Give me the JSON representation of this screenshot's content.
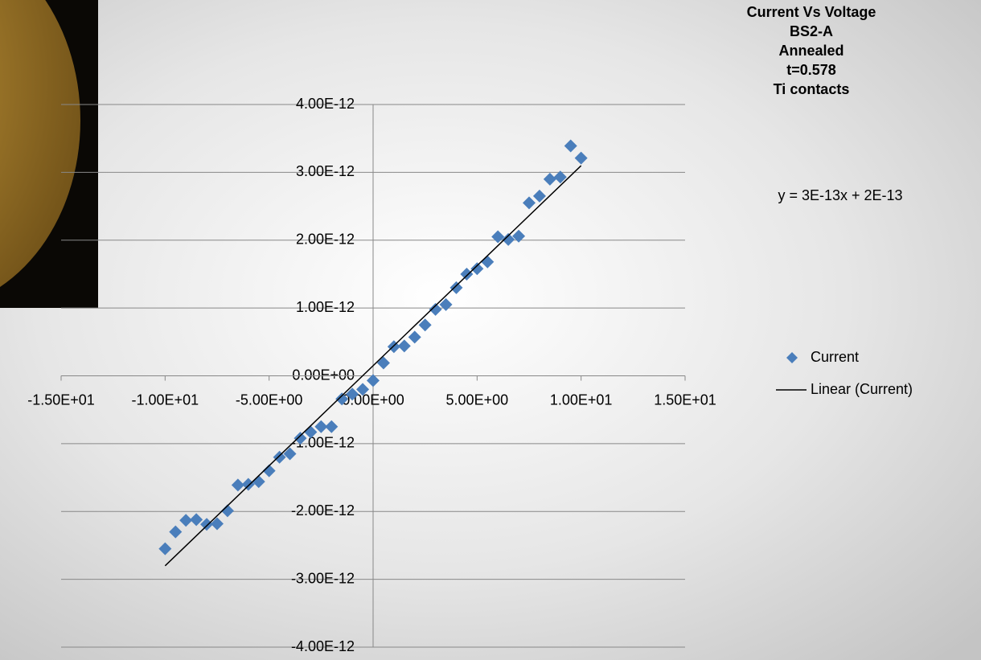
{
  "chart_data": {
    "type": "scatter",
    "title": [
      "Current Vs Voltage",
      "BS2-A",
      "Annealed",
      "t=0.578",
      "Ti contacts"
    ],
    "annotation": "y = 3E-13x + 2E-13",
    "trendline": {
      "type": "linear",
      "name": "Linear (Current)",
      "color": "#000000"
    },
    "x": [
      -10,
      -9.5,
      -9,
      -8.5,
      -8,
      -7.5,
      -7,
      -6.5,
      -6,
      -5.5,
      -5,
      -4.5,
      -4,
      -3.5,
      -3,
      -2.5,
      -2,
      -1.5,
      -1,
      -0.5,
      0,
      0.5,
      1,
      1.5,
      2,
      2.5,
      3,
      3.5,
      4,
      4.5,
      5,
      5.5,
      6,
      6.5,
      7,
      7.5,
      8,
      8.5,
      9,
      9.5,
      10
    ],
    "series": [
      {
        "name": "Current",
        "color": "#4a7ebb",
        "values": [
          -2.55e-12,
          -2.3e-12,
          -2.13e-12,
          -2.12e-12,
          -2.19e-12,
          -2.18e-12,
          -1.99e-12,
          -1.61e-12,
          -1.6e-12,
          -1.56e-12,
          -1.4e-12,
          -1.2e-12,
          -1.15e-12,
          -9.2e-13,
          -8.3e-13,
          -7.5e-13,
          -7.5e-13,
          -3.4e-13,
          -2.7e-13,
          -2e-13,
          -7e-14,
          1.9e-13,
          4.3e-13,
          4.4e-13,
          5.7e-13,
          7.5e-13,
          9.8e-13,
          1.05e-12,
          1.3e-12,
          1.5e-12,
          1.58e-12,
          1.68e-12,
          2.05e-12,
          2.01e-12,
          2.06e-12,
          2.55e-12,
          2.65e-12,
          2.9e-12,
          2.93e-12,
          3.39e-12,
          3.21e-12
        ]
      }
    ],
    "xlim": [
      -15,
      15
    ],
    "xticks": [
      {
        "value": -15,
        "label": "-1.50E+01"
      },
      {
        "value": -10,
        "label": "-1.00E+01"
      },
      {
        "value": -5,
        "label": "-5.00E+00"
      },
      {
        "value": 0,
        "label": "0.00E+00"
      },
      {
        "value": 5,
        "label": "5.00E+00"
      },
      {
        "value": 10,
        "label": "1.00E+01"
      },
      {
        "value": 15,
        "label": "1.50E+01"
      }
    ],
    "ylim": [
      -4e-12,
      4e-12
    ],
    "yticks": [
      {
        "value": -4e-12,
        "label": "-4.00E-12"
      },
      {
        "value": -3e-12,
        "label": "-3.00E-12"
      },
      {
        "value": -2e-12,
        "label": "-2.00E-12"
      },
      {
        "value": -1e-12,
        "label": "-1.00E-12"
      },
      {
        "value": 0,
        "label": "0.00E+00"
      },
      {
        "value": 1e-12,
        "label": "1.00E-12"
      },
      {
        "value": 2e-12,
        "label": "2.00E-12"
      },
      {
        "value": 3e-12,
        "label": "3.00E-12"
      },
      {
        "value": 4e-12,
        "label": "4.00E-12"
      }
    ],
    "grid": true,
    "legend": "right"
  }
}
